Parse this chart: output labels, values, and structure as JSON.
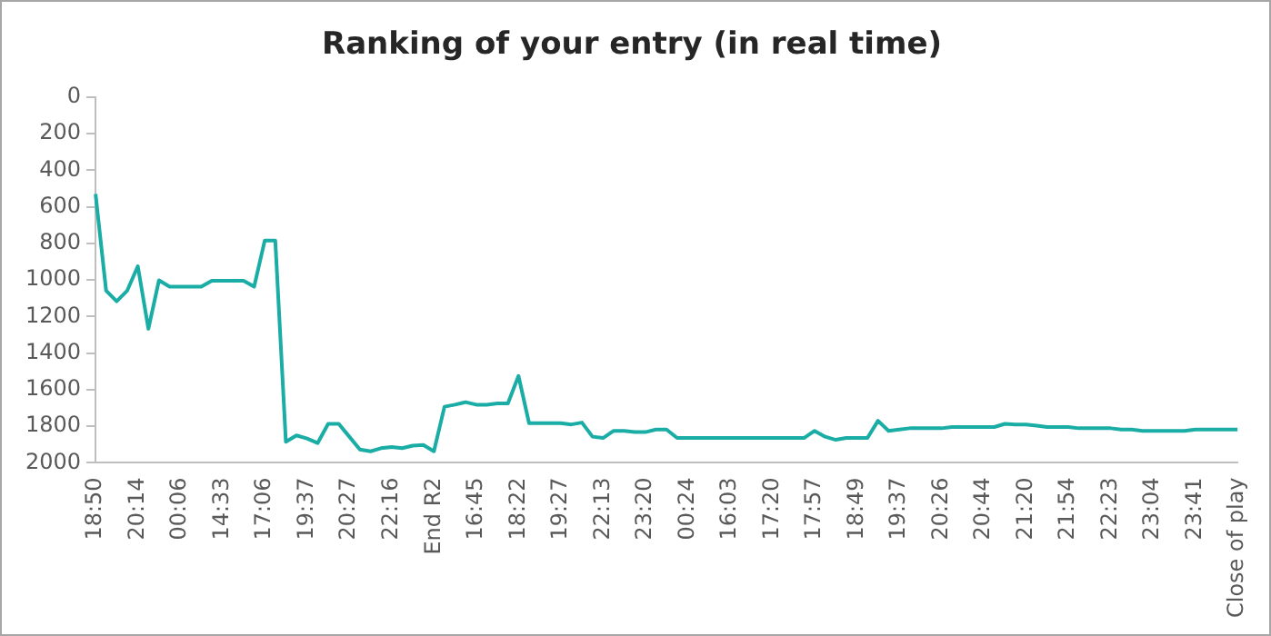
{
  "chart_data": {
    "type": "line",
    "title": "Ranking of your entry (in real time)",
    "categories": [
      "18:50",
      null,
      null,
      null,
      "20:14",
      null,
      null,
      null,
      "00:06",
      null,
      null,
      null,
      "14:33",
      null,
      null,
      null,
      "17:06",
      null,
      null,
      null,
      "19:37",
      null,
      null,
      null,
      "20:27",
      null,
      null,
      null,
      "22:16",
      null,
      null,
      null,
      "End R2",
      null,
      null,
      null,
      "16:45",
      null,
      null,
      null,
      "18:22",
      null,
      null,
      null,
      "19:27",
      null,
      null,
      null,
      "22:13",
      null,
      null,
      null,
      "23:20",
      null,
      null,
      null,
      "00:24",
      null,
      null,
      null,
      "16:03",
      null,
      null,
      null,
      "17:20",
      null,
      null,
      null,
      "17:57",
      null,
      null,
      null,
      "18:49",
      null,
      null,
      null,
      "19:37",
      null,
      null,
      null,
      "20:26",
      null,
      null,
      null,
      "20:44",
      null,
      null,
      null,
      "21:20",
      null,
      null,
      null,
      "21:54",
      null,
      null,
      null,
      "22:23",
      null,
      null,
      null,
      "23:04",
      null,
      null,
      null,
      "23:41",
      null,
      null,
      null,
      "Close of play"
    ],
    "series": [
      {
        "color": "#1aada6",
        "values": [
          530,
          1058,
          1117,
          1058,
          925,
          1267,
          1002,
          1037,
          1037,
          1037,
          1037,
          1005,
          1005,
          1005,
          1005,
          1037,
          785,
          785,
          1885,
          1850,
          1867,
          1892,
          1787,
          1787,
          1857,
          1927,
          1937,
          1920,
          1913,
          1920,
          1906,
          1902,
          1937,
          1693,
          1682,
          1668,
          1682,
          1682,
          1675,
          1675,
          1525,
          1783,
          1783,
          1783,
          1783,
          1790,
          1780,
          1857,
          1864,
          1825,
          1825,
          1832,
          1832,
          1818,
          1818,
          1864,
          1864,
          1864,
          1864,
          1864,
          1864,
          1864,
          1864,
          1864,
          1864,
          1864,
          1864,
          1864,
          1825,
          1857,
          1874,
          1864,
          1864,
          1864,
          1770,
          1825,
          1818,
          1811,
          1811,
          1811,
          1811,
          1804,
          1804,
          1804,
          1804,
          1804,
          1787,
          1790,
          1790,
          1797,
          1804,
          1804,
          1804,
          1811,
          1811,
          1811,
          1811,
          1818,
          1818,
          1825,
          1825,
          1825,
          1825,
          1825,
          1818,
          1818,
          1818,
          1818,
          1818
        ]
      }
    ],
    "ylim": [
      2000,
      0
    ],
    "yticks": [
      0,
      200,
      400,
      600,
      800,
      1000,
      1200,
      1400,
      1600,
      1800,
      2000
    ],
    "grid": false,
    "legend": false,
    "marker": "none",
    "line_style": "solid"
  }
}
